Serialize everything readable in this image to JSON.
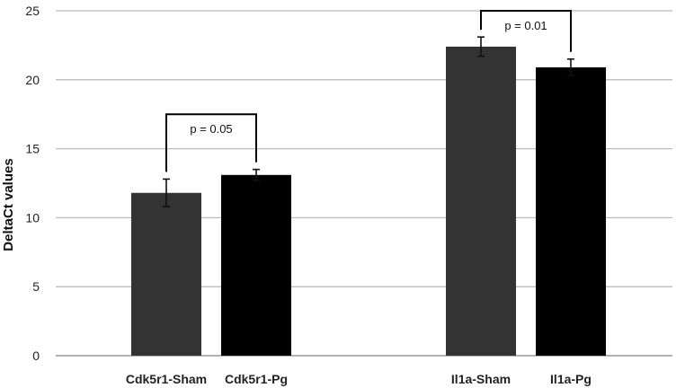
{
  "chart_data": {
    "type": "bar",
    "title": "",
    "xlabel": "",
    "ylabel": "DeltaCt values",
    "ylim": [
      0,
      25
    ],
    "yticks": [
      0,
      5,
      10,
      15,
      20,
      25
    ],
    "grid": true,
    "categories": [
      "Cdk5r1-Sham",
      "Cdk5r1-Pg",
      "Il1a-Sham",
      "Il1a-Pg"
    ],
    "values": [
      11.8,
      13.1,
      22.4,
      20.9
    ],
    "errors": [
      1.0,
      0.4,
      0.7,
      0.6
    ],
    "bar_colors": [
      "#333333",
      "#000000",
      "#333333",
      "#000000"
    ],
    "significance": [
      {
        "from": "Cdk5r1-Sham",
        "to": "Cdk5r1-Pg",
        "label": "p = 0.05",
        "level": 17.5
      },
      {
        "from": "Il1a-Sham",
        "to": "Il1a-Pg",
        "label": "p = 0.01",
        "level": 25
      }
    ]
  },
  "colors": {
    "grid": "#bbbbbb",
    "axis": "#999999",
    "bracket": "#000000",
    "error_bar": "#111111"
  }
}
